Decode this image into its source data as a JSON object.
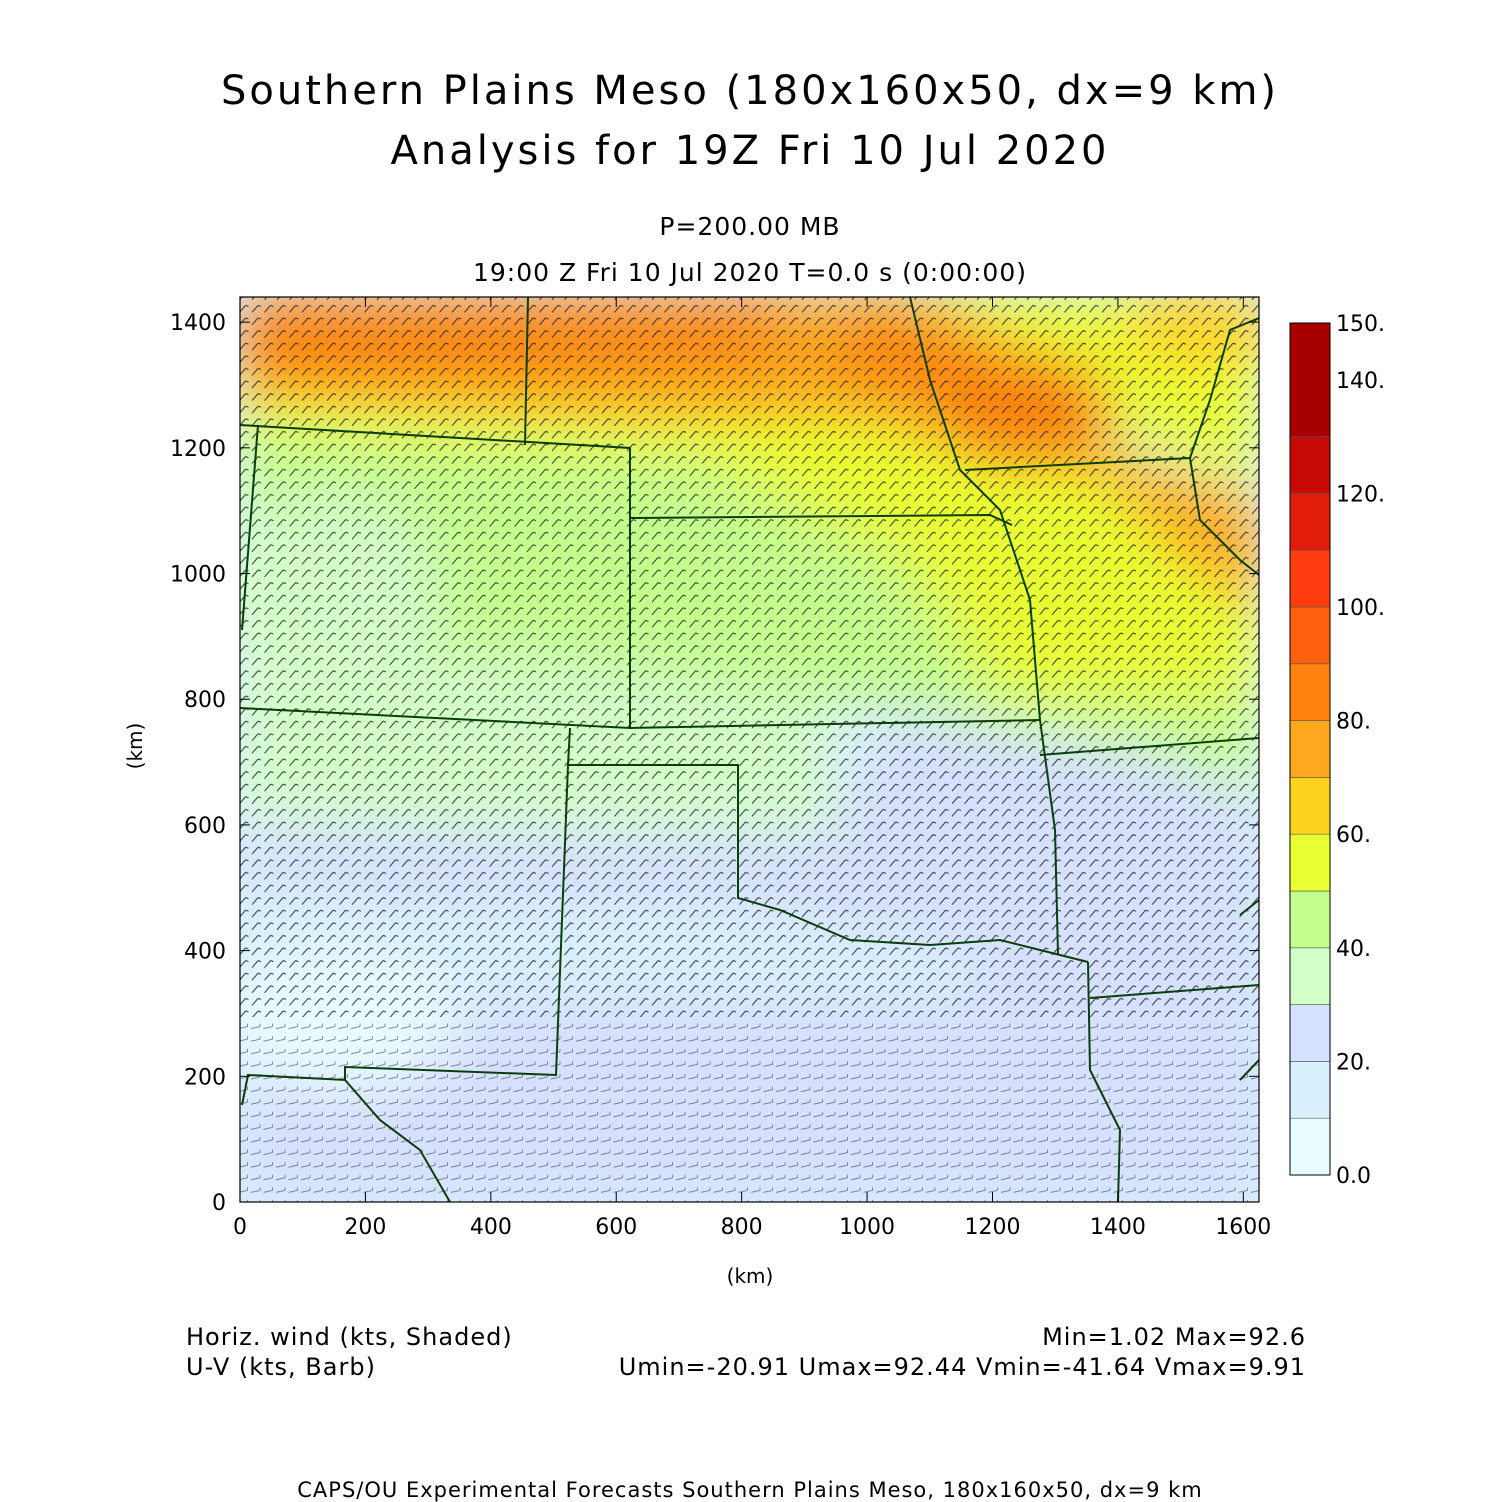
{
  "title": {
    "line1": "Southern Plains Meso (180x160x50, dx=9 km)",
    "line2": "Analysis for 19Z Fri 10 Jul 2020"
  },
  "subtitle": {
    "level": "P=200.00 MB",
    "time": "19:00 Z Fri 10 Jul 2020    T=0.0 s (0:00:00)"
  },
  "chart_data": {
    "type": "heatmap",
    "xlabel": "(km)",
    "ylabel": "(km)",
    "xlim": [
      0,
      1625
    ],
    "ylim": [
      0,
      1440
    ],
    "x_ticks": [
      "0",
      "200",
      "400",
      "600",
      "800",
      "1000",
      "1200",
      "1400",
      "1600"
    ],
    "y_ticks": [
      "0",
      "200",
      "400",
      "600",
      "800",
      "1000",
      "1200",
      "1400"
    ],
    "colorbar": {
      "range": [
        0,
        150
      ],
      "labels": [
        "0.0",
        "20.",
        "40.",
        "60.",
        "80.",
        "100.",
        "120.",
        "140.",
        "150."
      ],
      "colors": [
        "#e8fbff",
        "#d8f0ff",
        "#d6e0ff",
        "#d3ffc8",
        "#c4ff8e",
        "#e8ff32",
        "#ffd221",
        "#ffa81e",
        "#ff8210",
        "#ff6010",
        "#ff3c10",
        "#e21c0a",
        "#c80a06",
        "#a80000"
      ]
    }
  },
  "legend": {
    "field1": "Horiz. wind (kts, Shaded)",
    "field2": "U-V (kts, Barb)",
    "minmax": "Min=1.02 Max=92.6",
    "uv_stats": "Umin=-20.91 Umax=92.44 Vmin=-41.64 Vmax=9.91"
  },
  "footer": "CAPS/OU Experimental Forecasts  Southern Plains Meso, 180x160x50, dx=9 km"
}
